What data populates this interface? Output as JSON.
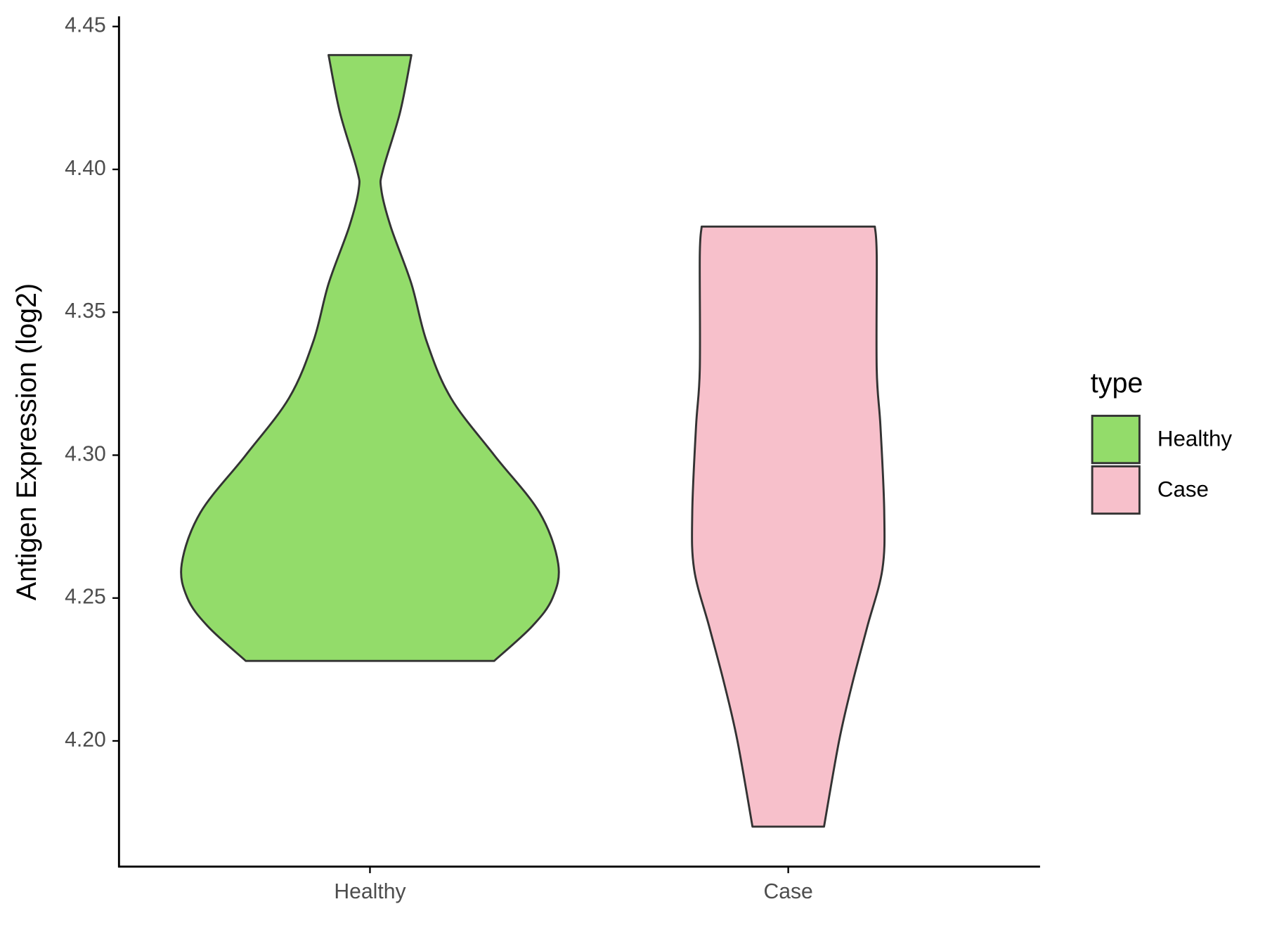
{
  "chart_data": {
    "type": "violin",
    "y_label": "Antigen Expression (log2)",
    "categories": [
      "Healthy",
      "Case"
    ],
    "legend_title": "type",
    "series": [
      {
        "name": "Healthy",
        "color": "#93dc6a",
        "y": [
          4.44,
          4.42,
          4.4,
          4.393,
          4.38,
          4.36,
          4.34,
          4.32,
          4.3,
          4.28,
          4.262,
          4.25,
          4.24,
          4.228
        ],
        "width": [
          0.22,
          0.16,
          0.07,
          0.06,
          0.11,
          0.22,
          0.3,
          0.43,
          0.66,
          0.9,
          1.0,
          0.97,
          0.86,
          0.66
        ]
      },
      {
        "name": "Case",
        "color": "#f7c0cb",
        "y": [
          4.38,
          4.37,
          4.33,
          4.31,
          4.28,
          4.26,
          4.24,
          4.22,
          4.2,
          4.17
        ],
        "width": [
          0.46,
          0.47,
          0.47,
          0.49,
          0.51,
          0.5,
          0.42,
          0.34,
          0.27,
          0.19
        ]
      }
    ],
    "ylim": [
      4.156,
      4.453
    ],
    "yticks": [
      {
        "value": 4.2,
        "label": "4.20"
      },
      {
        "value": 4.25,
        "label": "4.25"
      },
      {
        "value": 4.3,
        "label": "4.30"
      },
      {
        "value": 4.35,
        "label": "4.35"
      },
      {
        "value": 4.4,
        "label": "4.40"
      },
      {
        "value": 4.45,
        "label": "4.45"
      }
    ]
  }
}
